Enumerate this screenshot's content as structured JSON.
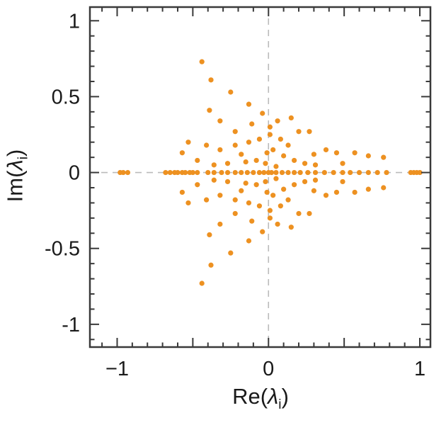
{
  "chart_data": {
    "type": "scatter",
    "title": "",
    "xlabel": "Re(λ_i)",
    "ylabel": "Im(λ_i)",
    "xlabel_parts": {
      "pre": "Re(",
      "sym": "λ",
      "sub": "i",
      "post": ")"
    },
    "ylabel_parts": {
      "pre": "Im(",
      "sym": "λ",
      "sub": "i",
      "post": ")"
    },
    "xlim": [
      -1.18,
      1.07
    ],
    "ylim": [
      -1.15,
      1.09
    ],
    "x_tick_labels": [
      {
        "v": -1,
        "label": "−1"
      },
      {
        "v": 0,
        "label": "0"
      },
      {
        "v": 1,
        "label": "1"
      }
    ],
    "y_tick_labels": [
      {
        "v": 1,
        "label": "1"
      },
      {
        "v": 0.5,
        "label": "0.5"
      },
      {
        "v": 0,
        "label": "0"
      },
      {
        "v": -0.5,
        "label": "-0.5"
      },
      {
        "v": -1,
        "label": "-1"
      }
    ],
    "major_tick_step": 0.5,
    "minor_tick_step": 0.1,
    "grid": false,
    "legend": false,
    "zero_lines_dashed": true,
    "conjugate_symmetric": true,
    "marker_radius_px": 3.6,
    "colors": {
      "marker": "#ED9121",
      "axis": "#3a3a3a",
      "zero_line": "#bbbbbb",
      "tick_label": "#1a1a1a"
    },
    "points_real": [
      -0.98,
      -0.96,
      -0.93,
      -0.68,
      -0.65,
      -0.62,
      -0.6,
      -0.57,
      -0.55,
      -0.52,
      -0.5,
      -0.47,
      -0.4,
      -0.36,
      -0.31,
      -0.27,
      -0.22,
      -0.18,
      -0.14,
      -0.1,
      -0.06,
      -0.03,
      0.0,
      0.02,
      0.05,
      0.09,
      0.13,
      0.17,
      0.21,
      0.26,
      0.31,
      0.37,
      0.43,
      0.49,
      0.54,
      0.6,
      0.66,
      0.72,
      0.78,
      0.94,
      0.96,
      0.98,
      1.0
    ],
    "points_complex_upper_half": [
      [
        -0.44,
        0.73
      ],
      [
        -0.38,
        0.61
      ],
      [
        -0.25,
        0.53
      ],
      [
        -0.39,
        0.41
      ],
      [
        -0.13,
        0.45
      ],
      [
        -0.32,
        0.34
      ],
      [
        -0.22,
        0.27
      ],
      [
        -0.11,
        0.32
      ],
      [
        -0.04,
        0.39
      ],
      [
        0.06,
        0.34
      ],
      [
        0.15,
        0.36
      ],
      [
        0.2,
        0.27
      ],
      [
        0.27,
        0.27
      ],
      [
        0.01,
        0.25
      ],
      [
        0.08,
        0.22
      ],
      [
        -0.06,
        0.22
      ],
      [
        -0.13,
        0.2
      ],
      [
        -0.22,
        0.18
      ],
      [
        -0.32,
        0.15
      ],
      [
        -0.41,
        0.18
      ],
      [
        -0.53,
        0.2
      ],
      [
        -0.57,
        0.13
      ],
      [
        0.38,
        0.15
      ],
      [
        0.45,
        0.13
      ],
      [
        0.57,
        0.13
      ],
      [
        0.66,
        0.11
      ],
      [
        0.76,
        0.1
      ],
      [
        0.03,
        0.15
      ],
      [
        -0.01,
        0.13
      ],
      [
        0.1,
        0.11
      ],
      [
        0.17,
        0.08
      ],
      [
        0.24,
        0.06
      ],
      [
        0.31,
        0.05
      ],
      [
        -0.08,
        0.08
      ],
      [
        -0.15,
        0.07
      ],
      [
        -0.27,
        0.06
      ],
      [
        -0.36,
        0.05
      ],
      [
        -0.02,
        0.06
      ],
      [
        0.05,
        0.04
      ],
      [
        0.49,
        0.06
      ],
      [
        0.13,
        0.18
      ],
      [
        -0.18,
        0.12
      ],
      [
        0.3,
        0.12
      ],
      [
        -0.47,
        0.08
      ],
      [
        0.01,
        0.3
      ]
    ]
  }
}
